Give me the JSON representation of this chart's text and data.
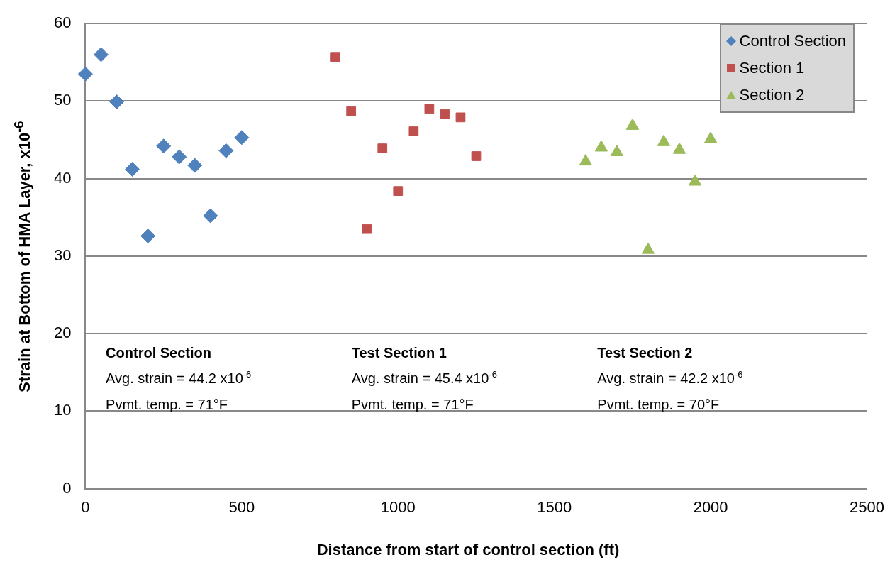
{
  "chart_data": {
    "type": "scatter",
    "xlabel": "Distance from start of control section (ft)",
    "ylabel": "Strain at Bottom of HMA Layer,  x10$^{-6}$",
    "xlim": [
      0,
      2500
    ],
    "xticks": [
      0,
      500,
      1000,
      1500,
      2000,
      2500
    ],
    "ylim": [
      0,
      60
    ],
    "yticks": [
      0,
      10,
      20,
      30,
      40,
      50,
      60
    ],
    "grid": "y",
    "legend": "top right",
    "series": [
      {
        "name": "Control Section",
        "color": "#4f81bd",
        "marker": "diamond",
        "x": [
          0,
          50,
          100,
          150,
          200,
          250,
          300,
          350,
          400,
          450,
          500
        ],
        "values": [
          53.5,
          56.0,
          49.9,
          41.2,
          32.6,
          44.2,
          42.8,
          41.7,
          35.2,
          43.6,
          45.3
        ]
      },
      {
        "name": "Section 1",
        "color": "#c0504d",
        "marker": "square",
        "x": [
          800,
          850,
          900,
          950,
          1000,
          1050,
          1100,
          1150,
          1200,
          1250
        ],
        "values": [
          55.7,
          48.7,
          33.5,
          43.9,
          38.4,
          46.1,
          49.0,
          48.3,
          47.9,
          42.9
        ]
      },
      {
        "name": "Section 2",
        "color": "#9bbb59",
        "marker": "triangle",
        "x": [
          1600,
          1650,
          1700,
          1750,
          1800,
          1850,
          1900,
          1950,
          2000
        ],
        "values": [
          42.2,
          44.0,
          43.4,
          46.8,
          30.8,
          44.7,
          43.7,
          39.6,
          45.1
        ]
      }
    ],
    "annotations": [
      "Control Section",
      "Avg. strain = 44.2 x10$^{-6}$",
      "Pvmt. temp. = 71°F",
      "Test Section 1",
      "Avg. strain = 45.4 x10$^{-6}$",
      "Pvmt. temp. = 71°F",
      "Test Section 2",
      "Avg. strain = 42.2 x10$^{-6}$",
      "Pvmt. temp. = 70°F"
    ]
  }
}
